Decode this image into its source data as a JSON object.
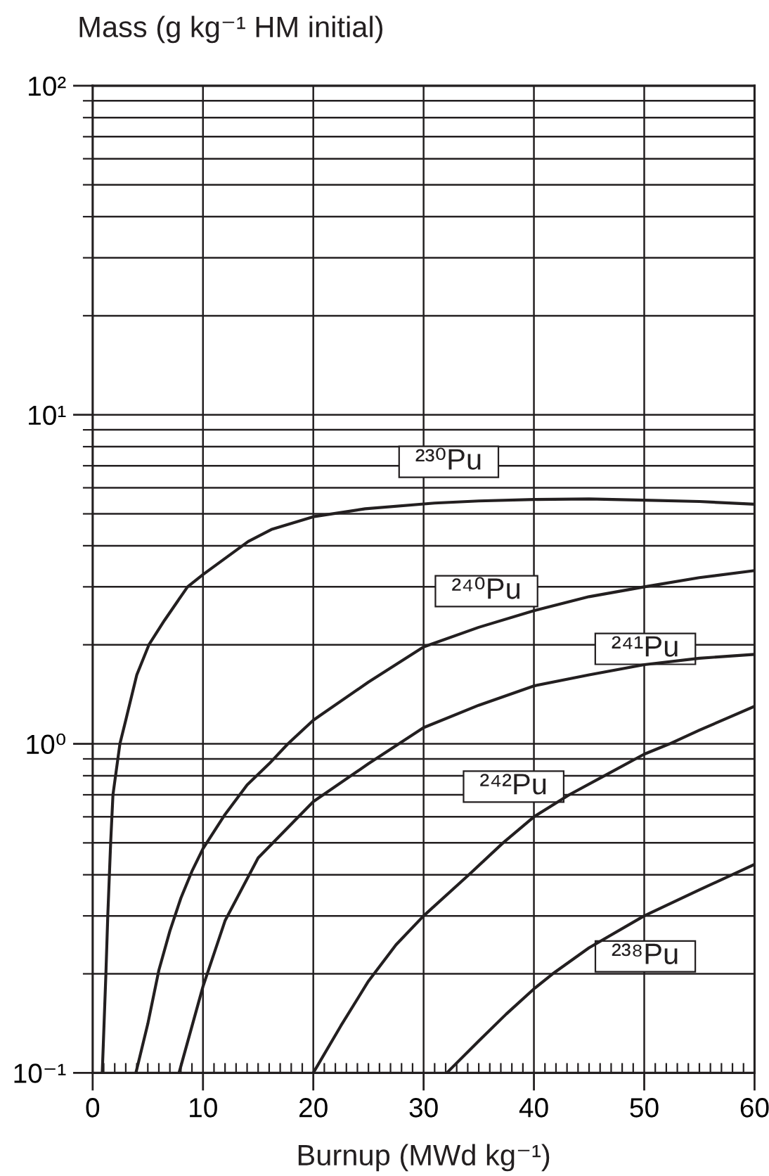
{
  "chart_data": {
    "type": "line",
    "xlabel": "Burnup (MWd kg⁻¹)",
    "ylabel": "Mass (g kg⁻¹ HM initial)",
    "log": "y",
    "grid": true,
    "xlim": [
      0,
      60
    ],
    "ylim": [
      0.1,
      100
    ],
    "xticks": [
      0,
      {
        "value": 1,
        "label": null
      },
      {
        "value": 2,
        "label": null
      },
      {
        "value": 3,
        "label": null
      },
      {
        "value": 4,
        "label": null
      },
      {
        "value": 5,
        "label": null
      },
      {
        "value": 6,
        "label": null
      },
      {
        "value": 7,
        "label": null
      },
      {
        "value": 8,
        "label": null
      },
      {
        "value": 9,
        "label": null
      },
      10,
      {
        "value": 11,
        "label": null
      },
      {
        "value": 12,
        "label": null
      },
      {
        "value": 13,
        "label": null
      },
      {
        "value": 14,
        "label": null
      },
      {
        "value": 15,
        "label": null
      },
      {
        "value": 16,
        "label": null
      },
      {
        "value": 17,
        "label": null
      },
      {
        "value": 18,
        "label": null
      },
      {
        "value": 19,
        "label": null
      },
      20,
      {
        "value": 21,
        "label": null
      },
      {
        "value": 22,
        "label": null
      },
      {
        "value": 23,
        "label": null
      },
      {
        "value": 24,
        "label": null
      },
      {
        "value": 25,
        "label": null
      },
      {
        "value": 26,
        "label": null
      },
      {
        "value": 27,
        "label": null
      },
      {
        "value": 28,
        "label": null
      },
      {
        "value": 29,
        "label": null
      },
      30,
      {
        "value": 31,
        "label": null
      },
      {
        "value": 32,
        "label": null
      },
      {
        "value": 33,
        "label": null
      },
      {
        "value": 34,
        "label": null
      },
      {
        "value": 35,
        "label": null
      },
      {
        "value": 36,
        "label": null
      },
      {
        "value": 37,
        "label": null
      },
      {
        "value": 38,
        "label": null
      },
      {
        "value": 39,
        "label": null
      },
      40,
      {
        "value": 41,
        "label": null
      },
      {
        "value": 42,
        "label": null
      },
      {
        "value": 43,
        "label": null
      },
      {
        "value": 44,
        "label": null
      },
      {
        "value": 45,
        "label": null
      },
      {
        "value": 46,
        "label": null
      },
      {
        "value": 47,
        "label": null
      },
      {
        "value": 48,
        "label": null
      },
      {
        "value": 49,
        "label": null
      },
      50,
      {
        "value": 51,
        "label": null
      },
      {
        "value": 52,
        "label": null
      },
      {
        "value": 53,
        "label": null
      },
      {
        "value": 54,
        "label": null
      },
      {
        "value": 55,
        "label": null
      },
      {
        "value": 56,
        "label": null
      },
      {
        "value": 57,
        "label": null
      },
      {
        "value": 58,
        "label": null
      },
      {
        "value": 59,
        "label": null
      },
      60
    ],
    "yticks": [
      {
        "value": 0.1,
        "label": "10⁻¹"
      },
      {
        "value": 0.2,
        "label": null
      },
      {
        "value": 0.3,
        "label": null
      },
      {
        "value": 0.4,
        "label": null
      },
      {
        "value": 0.5,
        "label": null
      },
      {
        "value": 0.6,
        "label": null
      },
      {
        "value": 0.7,
        "label": null
      },
      {
        "value": 0.8,
        "label": null
      },
      {
        "value": 0.9,
        "label": null
      },
      {
        "value": 1,
        "label": "10⁰"
      },
      {
        "value": 2,
        "label": null
      },
      {
        "value": 3,
        "label": null
      },
      {
        "value": 4,
        "label": null
      },
      {
        "value": 5,
        "label": null
      },
      {
        "value": 6,
        "label": null
      },
      {
        "value": 7,
        "label": null
      },
      {
        "value": 8,
        "label": null
      },
      {
        "value": 9,
        "label": null
      },
      {
        "value": 10,
        "label": "10¹"
      },
      {
        "value": 20,
        "label": null
      },
      {
        "value": 30,
        "label": null
      },
      {
        "value": 40,
        "label": null
      },
      {
        "value": 50,
        "label": null
      },
      {
        "value": 60,
        "label": null
      },
      {
        "value": 70,
        "label": null
      },
      {
        "value": 80,
        "label": null
      },
      {
        "value": 90,
        "label": null
      },
      {
        "value": 100,
        "label": "10²"
      }
    ],
    "series": [
      {
        "name": "²³⁰Pu",
        "color": "#231f20",
        "x": [
          0.87,
          1.2,
          1.37,
          1.63,
          1.84,
          2.47,
          3,
          4,
          5.1,
          6.5,
          8.6,
          10,
          14.1,
          16.2,
          20,
          24.7,
          31,
          35,
          40,
          45,
          50,
          55,
          60
        ],
        "values": [
          0.1,
          0.2,
          0.3,
          0.5,
          0.7,
          1.0,
          1.18,
          1.62,
          2.0,
          2.37,
          3.0,
          3.27,
          4.12,
          4.48,
          4.9,
          5.18,
          5.39,
          5.47,
          5.53,
          5.55,
          5.5,
          5.45,
          5.35
        ]
      },
      {
        "name": "²⁴⁰Pu",
        "color": "#231f20",
        "x": [
          3.92,
          5,
          6,
          7,
          8,
          9,
          10,
          12,
          14,
          16,
          17.7,
          20,
          25,
          30,
          35,
          40,
          45,
          50,
          55,
          60
        ],
        "values": [
          0.1,
          0.141,
          0.205,
          0.27,
          0.34,
          0.41,
          0.48,
          0.61,
          0.75,
          0.87,
          1.0,
          1.18,
          1.54,
          1.97,
          2.26,
          2.54,
          2.8,
          3.0,
          3.2,
          3.36
        ]
      },
      {
        "name": "²⁴¹Pu",
        "color": "#231f20",
        "x": [
          7.83,
          10,
          12,
          15,
          18,
          20,
          25,
          30,
          35,
          40,
          45,
          50,
          55,
          60
        ],
        "values": [
          0.1,
          0.183,
          0.29,
          0.45,
          0.57,
          0.667,
          0.87,
          1.12,
          1.31,
          1.5,
          1.62,
          1.74,
          1.82,
          1.87
        ]
      },
      {
        "name": "²⁴²Pu",
        "color": "#231f20",
        "x": [
          20,
          22.5,
          25,
          27.5,
          30,
          34.1,
          37.2,
          40,
          43.2,
          46.4,
          50,
          52.3,
          55,
          60
        ],
        "values": [
          0.1,
          0.139,
          0.19,
          0.245,
          0.3,
          0.4,
          0.5,
          0.6,
          0.7,
          0.8,
          0.93,
          1.0,
          1.1,
          1.3
        ]
      },
      {
        "name": "²³⁸Pu",
        "color": "#231f20",
        "x": [
          32.1,
          35,
          37.5,
          40,
          41.7,
          45,
          50,
          55,
          60
        ],
        "values": [
          0.1,
          0.125,
          0.151,
          0.18,
          0.2,
          0.24,
          0.3,
          0.36,
          0.43
        ]
      }
    ]
  }
}
